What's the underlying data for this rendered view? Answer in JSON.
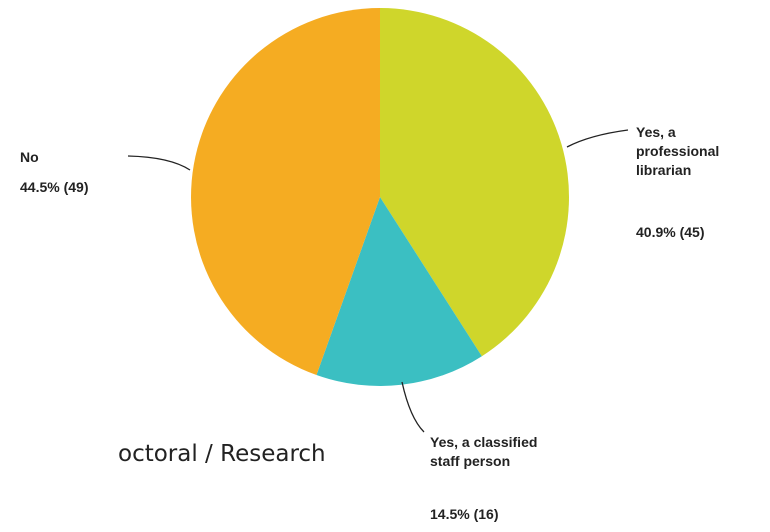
{
  "chart_data": {
    "type": "pie",
    "start_angle_deg": 0,
    "direction": "clockwise",
    "slices": [
      {
        "name": "Yes, a professional librarian",
        "label_lines": [
          "Yes, a",
          "professional",
          "librarian"
        ],
        "value_text": "40.9% (45)",
        "percent": 40.9,
        "count": 45,
        "color": "#cfd62b"
      },
      {
        "name": "Yes, a classified staff person",
        "label_lines": [
          "Yes, a classified",
          "staff person"
        ],
        "value_text": "14.5% (16)",
        "percent": 14.5,
        "count": 16,
        "color": "#3bbfc2"
      },
      {
        "name": "No",
        "label_lines": [
          "No"
        ],
        "value_text": "44.5% (49)",
        "percent": 44.5,
        "count": 49,
        "color": "#f5ac22"
      }
    ]
  },
  "caption": "octoral / Research"
}
